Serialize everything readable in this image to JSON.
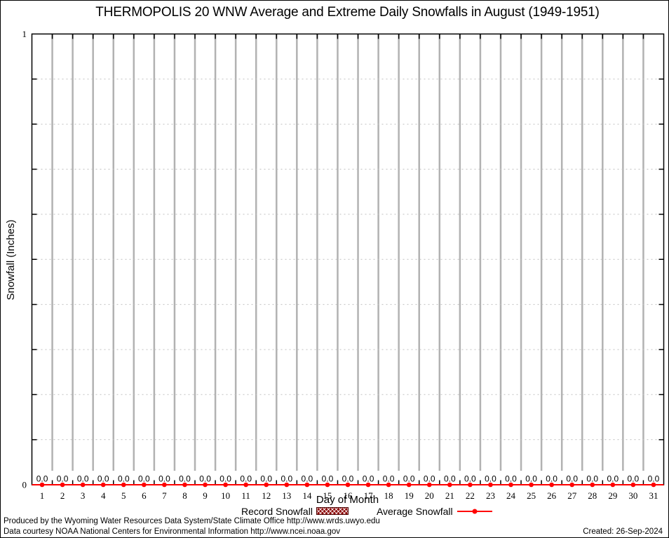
{
  "chart_data": {
    "type": "line",
    "title": "THERMOPOLIS 20 WNW Average and Extreme Daily Snowfalls in August (1949-1951)",
    "xlabel": "Day of Month",
    "ylabel": "Snowfall (Inches)",
    "x": [
      1,
      2,
      3,
      4,
      5,
      6,
      7,
      8,
      9,
      10,
      11,
      12,
      13,
      14,
      15,
      16,
      17,
      18,
      19,
      20,
      21,
      22,
      23,
      24,
      25,
      26,
      27,
      28,
      29,
      30,
      31
    ],
    "series": [
      {
        "name": "Record Snowfall",
        "style": "hatched-box",
        "color": "#8b0000",
        "values": [
          0,
          0,
          0,
          0,
          0,
          0,
          0,
          0,
          0,
          0,
          0,
          0,
          0,
          0,
          0,
          0,
          0,
          0,
          0,
          0,
          0,
          0,
          0,
          0,
          0,
          0,
          0,
          0,
          0,
          0,
          0
        ]
      },
      {
        "name": "Average Snowfall",
        "style": "line-point",
        "color": "#ff0000",
        "values": [
          0,
          0,
          0,
          0,
          0,
          0,
          0,
          0,
          0,
          0,
          0,
          0,
          0,
          0,
          0,
          0,
          0,
          0,
          0,
          0,
          0,
          0,
          0,
          0,
          0,
          0,
          0,
          0,
          0,
          0,
          0
        ]
      }
    ],
    "point_labels": [
      "0.0",
      "0.0",
      "0.0",
      "0.0",
      "0.0",
      "0.0",
      "0.0",
      "0.0",
      "0.0",
      "0.0",
      "0.0",
      "0.0",
      "0.0",
      "0.0",
      "0.0",
      "0.0",
      "0.0",
      "0.0",
      "0.0",
      "0.0",
      "0.0",
      "0.0",
      "0.0",
      "0.0",
      "0.0",
      "0.0",
      "0.0",
      "0.0",
      "0.0",
      "0.0",
      "0.0"
    ],
    "xlim": [
      0.5,
      31.5
    ],
    "ylim": [
      0,
      1
    ],
    "yticks": [
      {
        "value": 0,
        "label": "0"
      },
      {
        "value": 1,
        "label": "1"
      }
    ],
    "y_minor_step": 0.1,
    "grid": {
      "vertical": "solid",
      "horizontal": "dotted"
    },
    "legend_position": "bottom-center"
  },
  "colors": {
    "record": "#8b0000",
    "average": "#ff0000",
    "grid_vertical": "#b2b2b2",
    "grid_horizontal_dotted": "#c0c0c0",
    "axis": "#000000",
    "background": "#ffffff"
  },
  "footer": {
    "line1": "Produced by the Wyoming Water Resources Data System/State Climate Office http://www.wrds.uwyo.edu",
    "line2": "Data courtesy NOAA National Centers for Environmental Information http://www.ncei.noaa.gov",
    "created": "Created: 26-Sep-2024"
  }
}
